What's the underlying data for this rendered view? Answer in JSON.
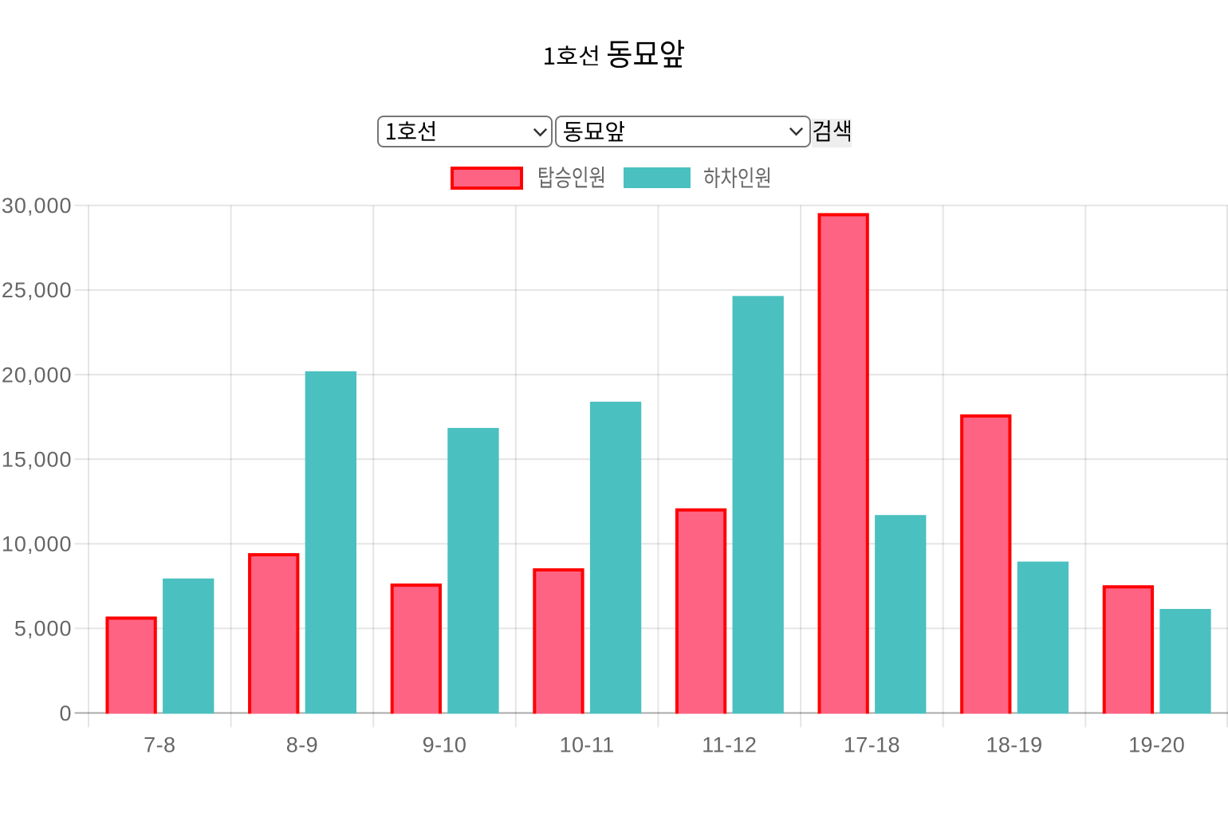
{
  "title": {
    "line": "1호선",
    "station": "동묘앞",
    "full": "1호선 동묘앞"
  },
  "controls": {
    "line_select": {
      "value": "1호선"
    },
    "station_select": {
      "value": "동묘앞"
    },
    "search_button": {
      "label": "검색"
    }
  },
  "chart_data": {
    "type": "bar",
    "title": "1호선 동묘앞",
    "categories": [
      "7-8",
      "8-9",
      "9-10",
      "10-11",
      "11-12",
      "17-18",
      "18-19",
      "19-20"
    ],
    "series": [
      {
        "name": "탑승인원",
        "color": "#ff6384",
        "border_color": "#ff0000",
        "values": [
          5700,
          9450,
          7650,
          8550,
          12100,
          29550,
          17650,
          7550
        ]
      },
      {
        "name": "하차인원",
        "color": "#4bc0c0",
        "values": [
          7950,
          20200,
          16850,
          18400,
          24650,
          11700,
          8950,
          6150
        ]
      }
    ],
    "xlabel": "",
    "ylabel": "",
    "ylim": [
      0,
      30000
    ],
    "ytick_step": 5000,
    "grid": true,
    "legend_position": "top",
    "tick_color": "#666666",
    "grid_color": "rgba(0,0,0,0.1)",
    "axis_line_color": "rgba(0,0,0,0.25)"
  }
}
